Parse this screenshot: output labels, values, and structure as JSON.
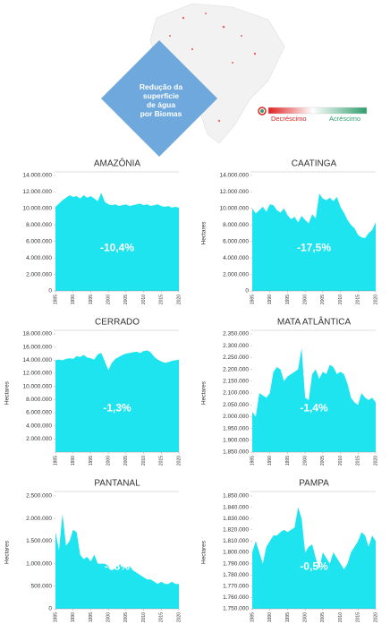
{
  "header": {
    "title_lines": [
      "Redução da",
      "superfície",
      "de água",
      "por Biomas"
    ],
    "legend": [
      "Decréscimo",
      "Acréscimo"
    ]
  },
  "chart_data": [
    {
      "type": "area",
      "title": "AMAZÔNIA",
      "annotation": "-10,4%",
      "color": "#1ee4ef",
      "x": [
        1985,
        1986,
        1987,
        1988,
        1989,
        1990,
        1991,
        1992,
        1993,
        1994,
        1995,
        1996,
        1997,
        1998,
        1999,
        2000,
        2001,
        2002,
        2003,
        2004,
        2005,
        2006,
        2007,
        2008,
        2009,
        2010,
        2011,
        2012,
        2013,
        2014,
        2015,
        2016,
        2017,
        2018,
        2019,
        2020
      ],
      "values": [
        10200000,
        10600000,
        11000000,
        11300000,
        11600000,
        11400000,
        11500000,
        11200000,
        11600000,
        11300000,
        11500000,
        11200000,
        10900000,
        11900000,
        10800000,
        10500000,
        10400000,
        10500000,
        10300000,
        10400000,
        10500000,
        10300000,
        10400000,
        10500000,
        10600000,
        10400000,
        10500000,
        10300000,
        10400000,
        10500000,
        10300000,
        10200000,
        10300000,
        10100000,
        10200000,
        10100000
      ],
      "xlim": [
        1985,
        2020
      ],
      "xticks": [
        1985,
        1990,
        1995,
        2000,
        2005,
        2010,
        2015,
        2020
      ],
      "ylim": [
        0,
        14000000
      ],
      "yticks": [
        0,
        {
          "value": 2000000,
          "label": "2.000.000"
        },
        {
          "value": 4000000,
          "label": "4.000.000"
        },
        {
          "value": 6000000,
          "label": "6.000.000"
        },
        {
          "value": 8000000,
          "label": "8.000.000"
        },
        {
          "value": 10000000,
          "label": "10.000.000"
        },
        {
          "value": 12000000,
          "label": "12.000.000"
        },
        {
          "value": 14000000,
          "label": "14.000.000"
        }
      ]
    },
    {
      "type": "area",
      "title": "CAATINGA",
      "annotation": "-17,5%",
      "ylabel": "Hectares",
      "color": "#1ee4ef",
      "x": [
        1985,
        1986,
        1987,
        1988,
        1989,
        1990,
        1991,
        1992,
        1993,
        1994,
        1995,
        1996,
        1997,
        1998,
        1999,
        2000,
        2001,
        2002,
        2003,
        2004,
        2005,
        2006,
        2007,
        2008,
        2009,
        2010,
        2011,
        2012,
        2013,
        2014,
        2015,
        2016,
        2017,
        2018,
        2019,
        2020
      ],
      "values": [
        10000000,
        9400000,
        9800000,
        10200000,
        9600000,
        10500000,
        10400000,
        9800000,
        9500000,
        10000000,
        9200000,
        8700000,
        9000000,
        8300000,
        9100000,
        8600000,
        8200000,
        9300000,
        8800000,
        11800000,
        11200000,
        11000000,
        11300000,
        10900000,
        11400000,
        10200000,
        9500000,
        8600000,
        8000000,
        7600000,
        6800000,
        6500000,
        6400000,
        7000000,
        7400000,
        8300000
      ],
      "xlim": [
        1985,
        2020
      ],
      "xticks": [
        1985,
        1990,
        1995,
        2000,
        2005,
        2010,
        2015,
        2020
      ],
      "ylim": [
        0,
        14000000
      ],
      "yticks": [
        0,
        {
          "value": 2000000,
          "label": "2.000.000"
        },
        {
          "value": 4000000,
          "label": "4.000.000"
        },
        {
          "value": 6000000,
          "label": "6.000.000"
        },
        {
          "value": 8000000,
          "label": "8.000.000"
        },
        {
          "value": 10000000,
          "label": "10.000.000"
        },
        {
          "value": 12000000,
          "label": "12.000.000"
        },
        {
          "value": 14000000,
          "label": "14.000.000"
        }
      ]
    },
    {
      "type": "area",
      "title": "CERRADO",
      "annotation": "-1,3%",
      "ylabel": "Hectares",
      "color": "#1ee4ef",
      "x": [
        1985,
        1986,
        1987,
        1988,
        1989,
        1990,
        1991,
        1992,
        1993,
        1994,
        1995,
        1996,
        1997,
        1998,
        1999,
        2000,
        2001,
        2002,
        2003,
        2004,
        2005,
        2006,
        2007,
        2008,
        2009,
        2010,
        2011,
        2012,
        2013,
        2014,
        2015,
        2016,
        2017,
        2018,
        2019,
        2020
      ],
      "values": [
        14000000,
        14100000,
        14000000,
        14200000,
        14300000,
        14200000,
        14600000,
        14500000,
        14800000,
        14400000,
        14300000,
        14100000,
        14900000,
        15100000,
        13800000,
        12500000,
        13600000,
        14200000,
        14500000,
        14800000,
        15000000,
        15100000,
        15200000,
        15300000,
        15100000,
        15400000,
        15500000,
        15200000,
        14500000,
        14100000,
        13800000,
        13600000,
        13700000,
        13900000,
        14000000,
        14100000
      ],
      "xlim": [
        1985,
        2020
      ],
      "xticks": [
        1985,
        1990,
        1995,
        2000,
        2005,
        2010,
        2015,
        2020
      ],
      "ylim": [
        0,
        18000000
      ],
      "yticks": [
        {
          "value": 2000000,
          "label": "2.000.000"
        },
        {
          "value": 4000000,
          "label": "4.000.000"
        },
        {
          "value": 6000000,
          "label": "6.000.000"
        },
        {
          "value": 8000000,
          "label": "8.000.000"
        },
        {
          "value": 10000000,
          "label": "10.000.000"
        },
        {
          "value": 12000000,
          "label": "12.000.000"
        },
        {
          "value": 14000000,
          "label": "14.000.000"
        },
        {
          "value": 16000000,
          "label": "16.000.000"
        },
        {
          "value": 18000000,
          "label": "18.000.000"
        }
      ]
    },
    {
      "type": "area",
      "title": "MATA ATLÂNTICA",
      "annotation": "-1,4%",
      "ylabel": "Hectares",
      "color": "#1ee4ef",
      "x": [
        1985,
        1986,
        1987,
        1988,
        1989,
        1990,
        1991,
        1992,
        1993,
        1994,
        1995,
        1996,
        1997,
        1998,
        1999,
        2000,
        2001,
        2002,
        2003,
        2004,
        2005,
        2006,
        2007,
        2008,
        2009,
        2010,
        2011,
        2012,
        2013,
        2014,
        2015,
        2016,
        2017,
        2018,
        2019,
        2020
      ],
      "values": [
        2020000,
        2000000,
        2100000,
        2090000,
        2080000,
        2100000,
        2190000,
        2210000,
        2200000,
        2150000,
        2170000,
        2180000,
        2190000,
        2200000,
        2290000,
        2080000,
        2070000,
        2180000,
        2200000,
        2160000,
        2190000,
        2180000,
        2220000,
        2210000,
        2180000,
        2190000,
        2180000,
        2140000,
        2080000,
        2060000,
        2050000,
        2100000,
        2080000,
        2070000,
        2080000,
        2060000
      ],
      "xlim": [
        1985,
        2020
      ],
      "xticks": [
        1985,
        1990,
        1995,
        2000,
        2005,
        2010,
        2015,
        2020
      ],
      "ylim": [
        1850000,
        2350000
      ],
      "yticks": [
        {
          "value": 1850000,
          "label": "1.850.000"
        },
        {
          "value": 1900000,
          "label": "1.900.000"
        },
        {
          "value": 1950000,
          "label": "1.950.000"
        },
        {
          "value": 2000000,
          "label": "2.000.000"
        },
        {
          "value": 2050000,
          "label": "2.050.000"
        },
        {
          "value": 2100000,
          "label": "2.100.000"
        },
        {
          "value": 2150000,
          "label": "2.150.000"
        },
        {
          "value": 2200000,
          "label": "2.200.000"
        },
        {
          "value": 2250000,
          "label": "2.250.000"
        },
        {
          "value": 2300000,
          "label": "2.300.000"
        },
        {
          "value": 2350000,
          "label": "2.350.000"
        }
      ]
    },
    {
      "type": "area",
      "title": "PANTANAL",
      "annotation": "-68%",
      "ylabel": "Hectares",
      "color": "#1ee4ef",
      "x": [
        1985,
        1986,
        1987,
        1988,
        1989,
        1990,
        1991,
        1992,
        1993,
        1994,
        1995,
        1996,
        1997,
        1998,
        1999,
        2000,
        2001,
        2002,
        2003,
        2004,
        2005,
        2006,
        2007,
        2008,
        2009,
        2010,
        2011,
        2012,
        2013,
        2014,
        2015,
        2016,
        2017,
        2018,
        2019,
        2020
      ],
      "values": [
        1700000,
        1300000,
        2100000,
        1400000,
        1500000,
        1750000,
        1700000,
        1200000,
        1100000,
        1150000,
        1050000,
        1200000,
        1000000,
        1000000,
        1000000,
        950000,
        850000,
        900000,
        1000000,
        950000,
        900000,
        950000,
        850000,
        800000,
        750000,
        700000,
        650000,
        650000,
        600000,
        550000,
        600000,
        550000,
        550000,
        600000,
        550000,
        550000
      ],
      "xlim": [
        1985,
        2020
      ],
      "xticks": [
        1985,
        1990,
        1995,
        2000,
        2005,
        2010,
        2015,
        2020
      ],
      "ylim": [
        0,
        2500000
      ],
      "yticks": [
        0,
        {
          "value": 500000,
          "label": "500.000"
        },
        {
          "value": 1000000,
          "label": "1.000.000"
        },
        {
          "value": 1500000,
          "label": "1.500.000"
        },
        {
          "value": 2000000,
          "label": "2.000.000"
        },
        {
          "value": 2500000,
          "label": "2.500.000"
        }
      ]
    },
    {
      "type": "area",
      "title": "PAMPA",
      "annotation": "-0,5%",
      "ylabel": "Hectares",
      "color": "#1ee4ef",
      "x": [
        1985,
        1986,
        1987,
        1988,
        1989,
        1990,
        1991,
        1992,
        1993,
        1994,
        1995,
        1996,
        1997,
        1998,
        1999,
        2000,
        2001,
        2002,
        2003,
        2004,
        2005,
        2006,
        2007,
        2008,
        2009,
        2010,
        2011,
        2012,
        2013,
        2014,
        2015,
        2016,
        2017,
        2018,
        2019,
        2020
      ],
      "values": [
        1800000,
        1810000,
        1800000,
        1790000,
        1805000,
        1810000,
        1815000,
        1815000,
        1818000,
        1820000,
        1818000,
        1820000,
        1822000,
        1840000,
        1830000,
        1800000,
        1805000,
        1807000,
        1795000,
        1785000,
        1800000,
        1795000,
        1790000,
        1800000,
        1795000,
        1790000,
        1785000,
        1790000,
        1800000,
        1805000,
        1810000,
        1818000,
        1815000,
        1805000,
        1815000,
        1810000
      ],
      "xlim": [
        1985,
        2020
      ],
      "xticks": [
        1985,
        1990,
        1995,
        2000,
        2005,
        2010,
        2015,
        2020
      ],
      "ylim": [
        1750000,
        1850000
      ],
      "yticks": [
        {
          "value": 1750000,
          "label": "1.750.000"
        },
        {
          "value": 1760000,
          "label": "1.760.000"
        },
        {
          "value": 1770000,
          "label": "1.770.000"
        },
        {
          "value": 1780000,
          "label": "1.780.000"
        },
        {
          "value": 1790000,
          "label": "1.790.000"
        },
        {
          "value": 1800000,
          "label": "1.800.000"
        },
        {
          "value": 1810000,
          "label": "1.810.000"
        },
        {
          "value": 1820000,
          "label": "1.820.000"
        },
        {
          "value": 1830000,
          "label": "1.830.000"
        },
        {
          "value": 1840000,
          "label": "1.840.000"
        },
        {
          "value": 1850000,
          "label": "1.850.000"
        }
      ]
    }
  ]
}
